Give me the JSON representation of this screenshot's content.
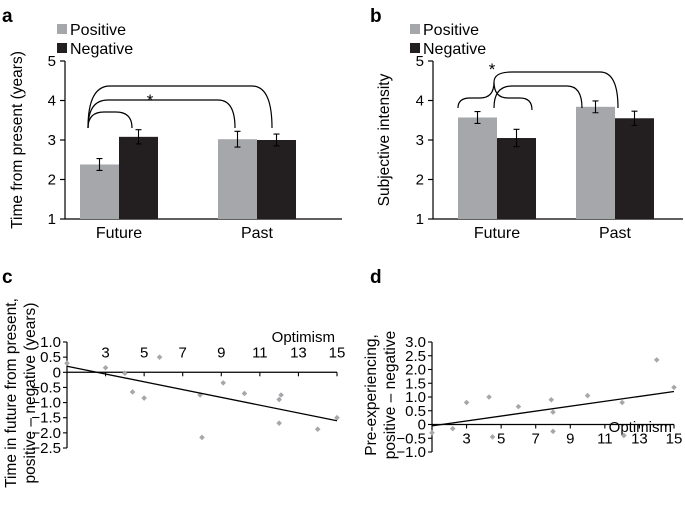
{
  "panels": {
    "a": "a",
    "b": "b",
    "c": "c",
    "d": "d"
  },
  "colors": {
    "positive": "#a5a7aa",
    "negative": "#231f20",
    "scatter_point": "#a5a7aa",
    "line": "#000000"
  },
  "chart_data": [
    {
      "panel": "a",
      "type": "bar",
      "ylabel": "Time from present (years)",
      "ylim": [
        1,
        5
      ],
      "yticks": [
        1,
        2,
        3,
        4,
        5
      ],
      "categories": [
        "Future",
        "Past"
      ],
      "series": [
        {
          "name": "Positive",
          "values": [
            2.38,
            3.02
          ],
          "errors": [
            0.15,
            0.2
          ]
        },
        {
          "name": "Negative",
          "values": [
            3.08,
            3.0
          ],
          "errors": [
            0.18,
            0.15
          ]
        }
      ],
      "legend": "top-left",
      "annotations": [
        "*"
      ]
    },
    {
      "panel": "b",
      "type": "bar",
      "ylabel": "Subjective intensity",
      "ylim": [
        1,
        5
      ],
      "yticks": [
        1,
        2,
        3,
        4,
        5
      ],
      "categories": [
        "Future",
        "Past"
      ],
      "series": [
        {
          "name": "Positive",
          "values": [
            3.57,
            3.84
          ],
          "errors": [
            0.15,
            0.15
          ]
        },
        {
          "name": "Negative",
          "values": [
            3.05,
            3.55
          ],
          "errors": [
            0.22,
            0.18
          ]
        }
      ],
      "legend": "top-left",
      "annotations": [
        "*"
      ]
    },
    {
      "panel": "c",
      "type": "scatter",
      "ylabel_lines": [
        "Time in future from present,",
        "positive – negative (years)"
      ],
      "xlabel": "Optimism",
      "xlim": [
        1,
        15
      ],
      "ylim": [
        -2.5,
        1.0
      ],
      "xticks": [
        3,
        5,
        7,
        9,
        11,
        13,
        15
      ],
      "yticks": [
        1.0,
        0.5,
        0,
        -0.5,
        -1.0,
        -1.5,
        -2.0,
        -2.5
      ],
      "ytick_labels": [
        "1.0",
        "0.5",
        "0",
        "−0.5",
        "−1.0",
        "−1.5",
        "−2.0",
        "−2.5"
      ],
      "points": [
        {
          "x": 1,
          "y": 0.3
        },
        {
          "x": 3,
          "y": 0.15
        },
        {
          "x": 4,
          "y": -0.03
        },
        {
          "x": 4.4,
          "y": -0.65
        },
        {
          "x": 5.0,
          "y": -0.85
        },
        {
          "x": 5.8,
          "y": 0.5
        },
        {
          "x": 7.9,
          "y": -0.75
        },
        {
          "x": 8.0,
          "y": -2.15
        },
        {
          "x": 9.1,
          "y": -0.35
        },
        {
          "x": 10.2,
          "y": -0.7
        },
        {
          "x": 12.0,
          "y": -0.9
        },
        {
          "x": 12.0,
          "y": -1.68
        },
        {
          "x": 12.1,
          "y": -0.75
        },
        {
          "x": 14.0,
          "y": -1.88
        },
        {
          "x": 15.0,
          "y": -1.5
        }
      ],
      "trend": {
        "x": [
          1,
          15
        ],
        "y": [
          0.2,
          -1.6
        ]
      }
    },
    {
      "panel": "d",
      "type": "scatter",
      "ylabel_lines": [
        "Pre-experiencing,",
        "positive – negative"
      ],
      "xlabel": "Optimism",
      "xlim": [
        1,
        15
      ],
      "ylim": [
        -1.0,
        3.0
      ],
      "xticks": [
        3,
        5,
        7,
        9,
        11,
        13,
        15
      ],
      "yticks": [
        3.0,
        2.5,
        2.0,
        1.5,
        1.0,
        0.5,
        0,
        -0.5,
        -1.0
      ],
      "ytick_labels": [
        "3.0",
        "2.5",
        "2.0",
        "1.5",
        "1.0",
        "0.5",
        "0",
        "−0.5",
        "−1.0"
      ],
      "points": [
        {
          "x": 1,
          "y": -0.3
        },
        {
          "x": 2.2,
          "y": -0.15
        },
        {
          "x": 3.0,
          "y": 0.8
        },
        {
          "x": 4.3,
          "y": 1.0
        },
        {
          "x": 4.5,
          "y": -0.45
        },
        {
          "x": 6.0,
          "y": 0.65
        },
        {
          "x": 7.9,
          "y": 0.9
        },
        {
          "x": 8.0,
          "y": 0.45
        },
        {
          "x": 8.0,
          "y": -0.25
        },
        {
          "x": 10.0,
          "y": 1.05
        },
        {
          "x": 12.0,
          "y": 0.8
        },
        {
          "x": 12.1,
          "y": -0.4
        },
        {
          "x": 14.0,
          "y": 2.35
        },
        {
          "x": 15.0,
          "y": 1.35
        }
      ],
      "trend": {
        "x": [
          1,
          15
        ],
        "y": [
          -0.05,
          1.2
        ]
      }
    }
  ]
}
